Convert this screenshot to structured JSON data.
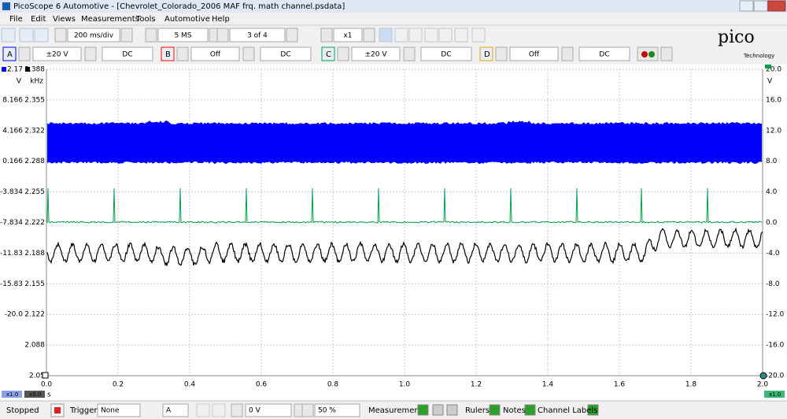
{
  "window": {
    "title": "PicoScope 6 Automotive - [Chevrolet_Colorado_2006 MAF frq. math channel.psdata]"
  },
  "menu": [
    "File",
    "Edit",
    "Views",
    "Measurements",
    "Tools",
    "Automotive",
    "Help"
  ],
  "toolbar": {
    "timebase": "200 ms/div",
    "samples": "5 MS",
    "buffer": "3 of 4",
    "zoom": "x1"
  },
  "logo": {
    "brand": "pico",
    "tagline": "Technology"
  },
  "channels": [
    {
      "name": "A",
      "range": "±20 V",
      "coupling": "DC"
    },
    {
      "name": "B",
      "range": "Off",
      "coupling": "DC"
    },
    {
      "name": "C",
      "range": "±20 V",
      "coupling": "DC"
    },
    {
      "name": "D",
      "range": "Off",
      "coupling": "DC"
    }
  ],
  "plot": {
    "left_axis_a": {
      "top": "2.17",
      "unit": "V",
      "scale": "x1.0",
      "ticks": [
        "8.166",
        "4.166",
        "0.166",
        "-3.834",
        "-7.834",
        "-11.83",
        "-15.83",
        "-20.0"
      ]
    },
    "left_axis_math": {
      "top": "2.388",
      "unit": "kHz",
      "scale": "x9.0",
      "ticks": [
        "2.355",
        "2.322",
        "2.288",
        "2.255",
        "2.222",
        "2.188",
        "2.155",
        "2.122",
        "2.088",
        "2.05"
      ]
    },
    "right_axis_c": {
      "top": "20.0",
      "unit": "V",
      "scale": "x1.0",
      "ticks": [
        "16.0",
        "12.0",
        "8.0",
        "4.0",
        "0.0",
        "-4.0",
        "-8.0",
        "-12.0",
        "-16.0",
        "-20.0"
      ]
    },
    "x_axis": {
      "unit": "s",
      "ticks": [
        "0.0",
        "0.2",
        "0.4",
        "0.6",
        "0.8",
        "1.0",
        "1.2",
        "1.4",
        "1.6",
        "1.8",
        "2.0"
      ]
    }
  },
  "status": {
    "state": "Stopped",
    "trigger_label": "Trigger",
    "trigger_mode": "None",
    "trigger_channel": "A",
    "trigger_level": "0 V",
    "pre_trigger": "50 %",
    "measurements": "Measurements",
    "rulers": "Rulers",
    "notes": "Notes",
    "channel_labels": "Channel Labels"
  }
}
